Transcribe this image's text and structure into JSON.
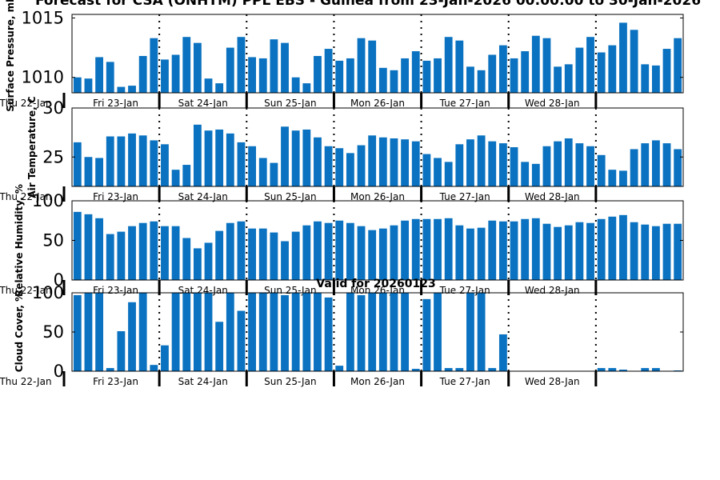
{
  "title": "Forecast for CSA (ONHTM) PPL EBS - Guinea from 23-Jan-2026 00:00:00 to 30-Jan-2026",
  "subtitle": "Valid for 20260123",
  "colors": {
    "bar": "#0a72c0",
    "axis": "#000000",
    "sep": "#000000"
  },
  "day_labels": [
    "Fri 23-Jan",
    "Sat 24-Jan",
    "Sun 25-Jan",
    "Mon 26-Jan",
    "Tue 27-Jan",
    "Wed 28-Jan"
  ],
  "start_label": "Thu 22-Jan",
  "chart_data": [
    {
      "type": "bar",
      "ylabel": "Surface Pressure, mb",
      "ylim": [
        1008.7,
        1015.3
      ],
      "yticks": [
        1010,
        1015
      ],
      "x_count": 56,
      "values": [
        1010.0,
        1009.9,
        1011.7,
        1011.3,
        1009.2,
        1009.3,
        1011.8,
        1013.3,
        1011.5,
        1011.9,
        1013.4,
        1012.9,
        1009.9,
        1009.5,
        1012.5,
        1013.4,
        1011.7,
        1011.6,
        1013.2,
        1012.9,
        1010.0,
        1009.5,
        1011.8,
        1012.4,
        1011.4,
        1011.6,
        1013.3,
        1013.1,
        1010.8,
        1010.6,
        1011.6,
        1012.2,
        1011.4,
        1011.6,
        1013.4,
        1013.1,
        1010.9,
        1010.6,
        1011.9,
        1012.7,
        1011.6,
        1012.2,
        1013.5,
        1013.3,
        1010.9,
        1011.1,
        1012.5,
        1013.4,
        1012.1,
        1012.7,
        1014.6,
        1014.0,
        1011.1,
        1011.0,
        1012.4,
        1013.3
      ],
      "separators_after": [
        7,
        15,
        23,
        31,
        39,
        47
      ]
    },
    {
      "type": "bar",
      "ylabel": "Air Temperature, C",
      "ylim": [
        22.0,
        30.0
      ],
      "yticks": [
        25,
        30
      ],
      "x_count": 56,
      "values": [
        26.5,
        25.0,
        24.9,
        27.1,
        27.1,
        27.4,
        27.2,
        26.7,
        26.3,
        23.7,
        24.2,
        28.3,
        27.7,
        27.8,
        27.4,
        26.5,
        26.1,
        24.9,
        24.4,
        28.1,
        27.7,
        27.8,
        27.0,
        26.1,
        25.9,
        25.4,
        26.2,
        27.2,
        27.0,
        26.9,
        26.8,
        26.6,
        25.3,
        24.9,
        24.5,
        26.3,
        26.8,
        27.2,
        26.6,
        26.4,
        26.0,
        24.5,
        24.3,
        26.1,
        26.6,
        26.9,
        26.4,
        26.1,
        25.2,
        23.7,
        23.6,
        25.8,
        26.4,
        26.7,
        26.4,
        25.8
      ],
      "separators_after": [
        7,
        15,
        23,
        31,
        39,
        47
      ]
    },
    {
      "type": "bar",
      "ylabel": "Relative Humidity, %",
      "ylim": [
        0,
        100
      ],
      "yticks": [
        0,
        50,
        100
      ],
      "x_count": 56,
      "values": [
        86,
        83,
        78,
        58,
        61,
        68,
        72,
        74,
        68,
        68,
        53,
        40,
        47,
        62,
        72,
        74,
        65,
        65,
        60,
        49,
        61,
        69,
        74,
        72,
        75,
        72,
        68,
        63,
        65,
        69,
        75,
        77,
        77,
        77,
        78,
        69,
        65,
        66,
        75,
        74,
        74,
        77,
        78,
        71,
        67,
        69,
        73,
        72,
        77,
        80,
        82,
        73,
        70,
        68,
        71,
        71
      ],
      "separators_after": [
        7,
        15,
        23,
        31,
        39,
        47
      ]
    },
    {
      "type": "bar",
      "ylabel": "Cloud Cover, %",
      "ylim": [
        0,
        100
      ],
      "yticks": [
        0,
        50,
        100
      ],
      "x_count": 56,
      "values": [
        97,
        100,
        100,
        4,
        51,
        88,
        100,
        8,
        33,
        100,
        100,
        100,
        100,
        63,
        100,
        77,
        100,
        100,
        100,
        97,
        100,
        100,
        100,
        94,
        7,
        100,
        97,
        100,
        100,
        100,
        100,
        3,
        92,
        100,
        4,
        4,
        100,
        100,
        4,
        47,
        0,
        0,
        0,
        0,
        0,
        0,
        0,
        0,
        4,
        4,
        2,
        0,
        4,
        4,
        0,
        1
      ],
      "separators_after": [
        7,
        15,
        23,
        31,
        39,
        47
      ]
    }
  ]
}
